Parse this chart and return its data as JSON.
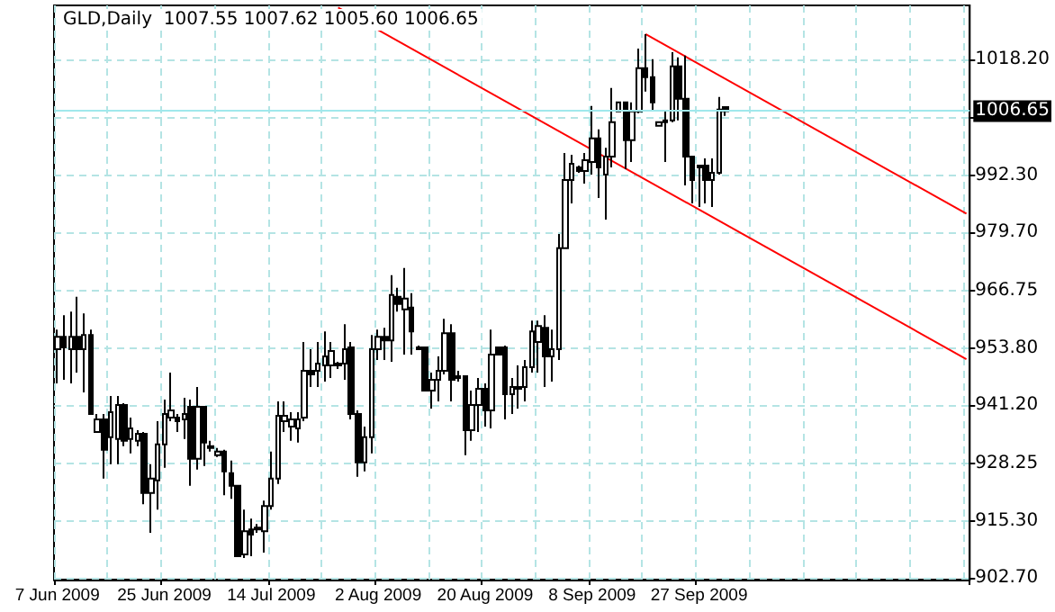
{
  "chart_data": {
    "type": "candlestick",
    "title": "GLD,Daily  1007.55 1007.62 1005.60 1006.65",
    "categories": [
      "7 Jun 2009",
      null,
      null,
      null,
      null,
      null,
      null,
      null,
      null,
      null,
      null,
      null,
      null,
      null,
      null,
      null,
      "25 Jun 2009",
      null,
      null,
      null,
      null,
      null,
      null,
      null,
      null,
      null,
      null,
      null,
      null,
      null,
      null,
      null,
      "14 Jul 2009",
      null,
      null,
      null,
      null,
      null,
      null,
      null,
      null,
      null,
      null,
      null,
      null,
      null,
      null,
      null,
      "2 Aug 2009",
      null,
      null,
      null,
      null,
      null,
      null,
      null,
      null,
      null,
      null,
      null,
      null,
      null,
      null,
      null,
      "20 Aug 2009",
      null,
      null,
      null,
      null,
      null,
      null,
      null,
      null,
      null,
      null,
      null,
      null,
      null,
      null,
      null,
      "8 Sep 2009",
      null,
      null,
      null,
      null,
      null,
      null,
      null,
      null,
      null,
      null,
      null,
      null,
      null,
      null,
      null,
      "27 Sep 2009",
      null,
      null,
      null,
      null,
      null,
      null,
      null,
      null,
      null,
      null,
      null,
      null,
      null,
      null,
      null,
      null,
      null,
      null,
      null,
      null,
      null,
      null,
      null,
      null,
      null,
      null,
      null,
      null,
      null,
      null,
      null,
      null,
      null,
      null,
      null,
      null,
      null,
      null,
      null,
      null
    ],
    "ohlc": [
      [
        953.6,
        958.0,
        946.0,
        956.4
      ],
      [
        956.4,
        961.2,
        946.8,
        954.0
      ],
      [
        953.6,
        962.0,
        946.0,
        956.4
      ],
      [
        956.4,
        965.3,
        948.4,
        953.6
      ],
      [
        953.6,
        961.6,
        944.0,
        956.8
      ],
      [
        956.8,
        958.0,
        939.2,
        939.2
      ],
      [
        935.2,
        939.2,
        935.2,
        938.0
      ],
      [
        938.0,
        939.2,
        924.8,
        931.2
      ],
      [
        934.0,
        943.2,
        928.0,
        939.6
      ],
      [
        933.6,
        943.2,
        928.0,
        941.2
      ],
      [
        941.2,
        941.6,
        932.0,
        933.2
      ],
      [
        933.6,
        938.4,
        930.4,
        936.0
      ],
      [
        933.2,
        935.6,
        932.0,
        934.8
      ],
      [
        934.8,
        935.2,
        919.1,
        921.6
      ],
      [
        921.6,
        928.0,
        912.7,
        924.8
      ],
      [
        924.4,
        937.6,
        917.9,
        932.4
      ],
      [
        932.4,
        942.4,
        927.2,
        939.2
      ],
      [
        938.4,
        948.4,
        937.6,
        940.0
      ],
      [
        938.4,
        939.2,
        935.2,
        937.6
      ],
      [
        938.0,
        942.8,
        933.6,
        939.2
      ],
      [
        940.8,
        942.4,
        923.2,
        929.2
      ],
      [
        929.2,
        945.2,
        926.8,
        940.8
      ],
      [
        940.8,
        940.8,
        927.6,
        932.8
      ],
      [
        932.0,
        933.2,
        930.8,
        931.6
      ],
      [
        930.0,
        931.6,
        929.6,
        930.8
      ],
      [
        930.8,
        931.2,
        921.1,
        926.4
      ],
      [
        926.0,
        928.8,
        920.3,
        923.2
      ],
      [
        923.2,
        923.2,
        907.5,
        907.5
      ],
      [
        907.9,
        917.9,
        907.1,
        913.1
      ],
      [
        913.5,
        915.9,
        907.5,
        912.3
      ],
      [
        913.9,
        914.7,
        912.7,
        913.5
      ],
      [
        913.1,
        919.9,
        908.3,
        918.7
      ],
      [
        918.7,
        930.8,
        917.9,
        924.8
      ],
      [
        924.8,
        942.0,
        923.6,
        938.8
      ],
      [
        937.6,
        942.0,
        935.2,
        938.8
      ],
      [
        936.4,
        939.6,
        933.2,
        938.0
      ],
      [
        936.0,
        939.6,
        932.8,
        938.0
      ],
      [
        938.4,
        955.2,
        937.6,
        948.8
      ],
      [
        948.8,
        953.6,
        945.2,
        948.0
      ],
      [
        948.8,
        955.2,
        945.2,
        950.4
      ],
      [
        950.0,
        957.6,
        946.4,
        952.0
      ],
      [
        950.0,
        955.2,
        947.2,
        953.2
      ],
      [
        950.4,
        950.8,
        949.2,
        950.0
      ],
      [
        950.4,
        959.2,
        946.8,
        953.6
      ],
      [
        954.0,
        955.2,
        938.0,
        939.2
      ],
      [
        939.2,
        940.0,
        925.2,
        928.4
      ],
      [
        928.4,
        936.4,
        926.4,
        934.0
      ],
      [
        934.0,
        956.8,
        930.4,
        953.6
      ],
      [
        953.6,
        958.0,
        951.2,
        956.4
      ],
      [
        956.4,
        958.4,
        951.2,
        955.6
      ],
      [
        955.6,
        970.1,
        950.8,
        965.7
      ],
      [
        965.3,
        967.3,
        962.0,
        963.7
      ],
      [
        962.5,
        971.7,
        952.4,
        964.9
      ],
      [
        962.9,
        966.1,
        952.4,
        957.6
      ],
      [
        954.0,
        954.4,
        953.6,
        953.6
      ],
      [
        954.0,
        954.0,
        944.4,
        944.4
      ],
      [
        944.4,
        948.4,
        940.4,
        946.8
      ],
      [
        946.8,
        952.0,
        942.0,
        948.8
      ],
      [
        948.8,
        960.4,
        948.0,
        957.2
      ],
      [
        957.2,
        959.2,
        942.0,
        946.8
      ],
      [
        947.6,
        948.8,
        946.4,
        947.2
      ],
      [
        947.6,
        947.6,
        930.0,
        935.6
      ],
      [
        935.6,
        944.4,
        933.2,
        941.2
      ],
      [
        941.2,
        947.2,
        935.2,
        944.8
      ],
      [
        944.8,
        946.0,
        936.4,
        940.0
      ],
      [
        940.0,
        958.0,
        936.0,
        952.4
      ],
      [
        954.0,
        954.0,
        952.4,
        952.4
      ],
      [
        954.0,
        954.4,
        938.0,
        943.6
      ],
      [
        943.6,
        947.2,
        939.2,
        945.2
      ],
      [
        945.2,
        950.0,
        940.4,
        944.8
      ],
      [
        945.2,
        951.2,
        942.0,
        949.6
      ],
      [
        949.6,
        960.0,
        948.4,
        957.6
      ],
      [
        955.2,
        960.0,
        948.4,
        958.8
      ],
      [
        958.4,
        961.2,
        945.2,
        952.0
      ],
      [
        952.0,
        958.0,
        946.4,
        953.6
      ],
      [
        953.6,
        979.3,
        951.2,
        976.1
      ],
      [
        976.1,
        997.3,
        976.1,
        991.3
      ],
      [
        991.3,
        996.9,
        986.1,
        994.9
      ],
      [
        994.1,
        994.5,
        992.9,
        993.3
      ],
      [
        993.3,
        997.3,
        990.5,
        995.7
      ],
      [
        995.3,
        1007.8,
        992.5,
        1000.6
      ],
      [
        1000.6,
        1002.6,
        987.3,
        994.1
      ],
      [
        992.5,
        998.5,
        982.5,
        996.5
      ],
      [
        996.5,
        1011.8,
        994.1,
        1004.2
      ],
      [
        1006.6,
        1008.6,
        1006.6,
        1008.6
      ],
      [
        1008.6,
        1008.6,
        993.7,
        1000.2
      ],
      [
        1000.2,
        1008.6,
        995.3,
        1006.6
      ],
      [
        1006.6,
        1020.6,
        1006.2,
        1016.2
      ],
      [
        1016.2,
        1023.8,
        1011.0,
        1014.2
      ],
      [
        1014.2,
        1018.2,
        1006.6,
        1008.6
      ],
      [
        1003.4,
        1004.2,
        1003.4,
        1004.2
      ],
      [
        1004.2,
        1006.6,
        995.3,
        1004.6
      ],
      [
        1004.6,
        1019.8,
        1004.2,
        1016.6
      ],
      [
        1016.6,
        1018.6,
        1004.6,
        1009.4
      ],
      [
        1009.4,
        1019.0,
        990.1,
        996.5
      ],
      [
        996.5,
        996.5,
        986.1,
        991.3
      ],
      [
        994.5,
        994.5,
        985.3,
        994.1
      ],
      [
        994.5,
        996.1,
        986.1,
        991.3
      ],
      [
        991.3,
        996.1,
        985.3,
        992.9
      ],
      [
        992.9,
        1009.8,
        992.5,
        1007.0
      ],
      [
        1007.55,
        1007.62,
        1005.6,
        1006.65
      ],
      null,
      null,
      null,
      null,
      null,
      null,
      null,
      null,
      null,
      null,
      null,
      null,
      null,
      null,
      null,
      null,
      null,
      null,
      null,
      null,
      null,
      null,
      null,
      null,
      null,
      null,
      null,
      null,
      null,
      null,
      null,
      null,
      null,
      null,
      null,
      null
    ],
    "series": [
      {
        "type": "line",
        "color": "#ff0000",
        "values": [
          null,
          null,
          null,
          null,
          null,
          null,
          null,
          null,
          null,
          null,
          null,
          null,
          null,
          null,
          null,
          null,
          null,
          null,
          null,
          null,
          null,
          null,
          null,
          null,
          null,
          null,
          null,
          null,
          null,
          null,
          null,
          null,
          null,
          null,
          null,
          null,
          null,
          null,
          null,
          null,
          null,
          null,
          1029.7,
          null,
          null,
          null,
          null,
          null,
          null,
          null,
          null,
          null,
          null,
          null,
          null,
          null,
          null,
          null,
          null,
          null,
          null,
          null,
          null,
          null,
          null,
          null,
          null,
          null,
          null,
          null,
          null,
          null,
          null,
          null,
          null,
          null,
          null,
          null,
          null,
          null,
          null,
          null,
          null,
          null,
          null,
          null,
          null,
          null,
          null,
          null,
          null,
          null,
          null,
          null,
          null,
          null,
          null,
          null,
          null,
          null,
          null,
          null,
          null,
          null,
          null,
          null,
          null,
          null,
          null,
          null,
          null,
          null,
          null,
          null,
          null,
          null,
          null,
          null,
          null,
          null,
          null,
          null,
          null,
          null,
          null,
          null,
          null,
          null,
          null,
          null,
          null,
          null,
          null,
          null,
          null,
          null,
          951.4
        ]
      },
      {
        "type": "line",
        "color": "#ff0000",
        "values": [
          null,
          null,
          null,
          null,
          null,
          null,
          null,
          null,
          null,
          null,
          null,
          null,
          null,
          null,
          null,
          null,
          null,
          null,
          null,
          null,
          null,
          null,
          null,
          null,
          null,
          null,
          null,
          null,
          null,
          null,
          null,
          null,
          null,
          null,
          null,
          null,
          null,
          null,
          null,
          null,
          null,
          null,
          null,
          null,
          null,
          null,
          null,
          null,
          null,
          null,
          null,
          null,
          null,
          null,
          null,
          null,
          null,
          null,
          null,
          null,
          null,
          null,
          null,
          null,
          null,
          null,
          null,
          null,
          null,
          null,
          null,
          null,
          null,
          null,
          null,
          null,
          null,
          null,
          null,
          null,
          null,
          null,
          null,
          null,
          null,
          null,
          null,
          null,
          1023.8,
          null,
          null,
          null,
          null,
          null,
          null,
          null,
          null,
          null,
          null,
          null,
          null,
          null,
          null,
          null,
          null,
          null,
          null,
          null,
          null,
          null,
          null,
          null,
          null,
          null,
          null,
          null,
          null,
          null,
          null,
          null,
          null,
          null,
          null,
          null,
          null,
          null,
          null,
          null,
          null,
          null,
          null,
          null,
          null,
          null,
          null,
          null,
          983.8
        ]
      }
    ],
    "ylim": [
      902.3,
      1030.2
    ],
    "yticks": [
      {
        "value": 902.7,
        "label": "902.70"
      },
      {
        "value": 915.3,
        "label": "915.30"
      },
      {
        "value": 928.25,
        "label": "928.25"
      },
      {
        "value": 941.2,
        "label": "941.20"
      },
      {
        "value": 953.8,
        "label": "953.80"
      },
      {
        "value": 966.75,
        "label": "966.75"
      },
      {
        "value": 979.7,
        "label": "979.70"
      },
      {
        "value": 992.3,
        "label": "992.30"
      },
      {
        "value": 1005.25,
        "label": null
      },
      {
        "value": 1018.2,
        "label": "1018.20"
      }
    ],
    "ref_lines": [
      {
        "axis": "y",
        "value": 1006.65,
        "label": "1006.65",
        "color": "#a0e8ec"
      }
    ],
    "grid": true
  }
}
